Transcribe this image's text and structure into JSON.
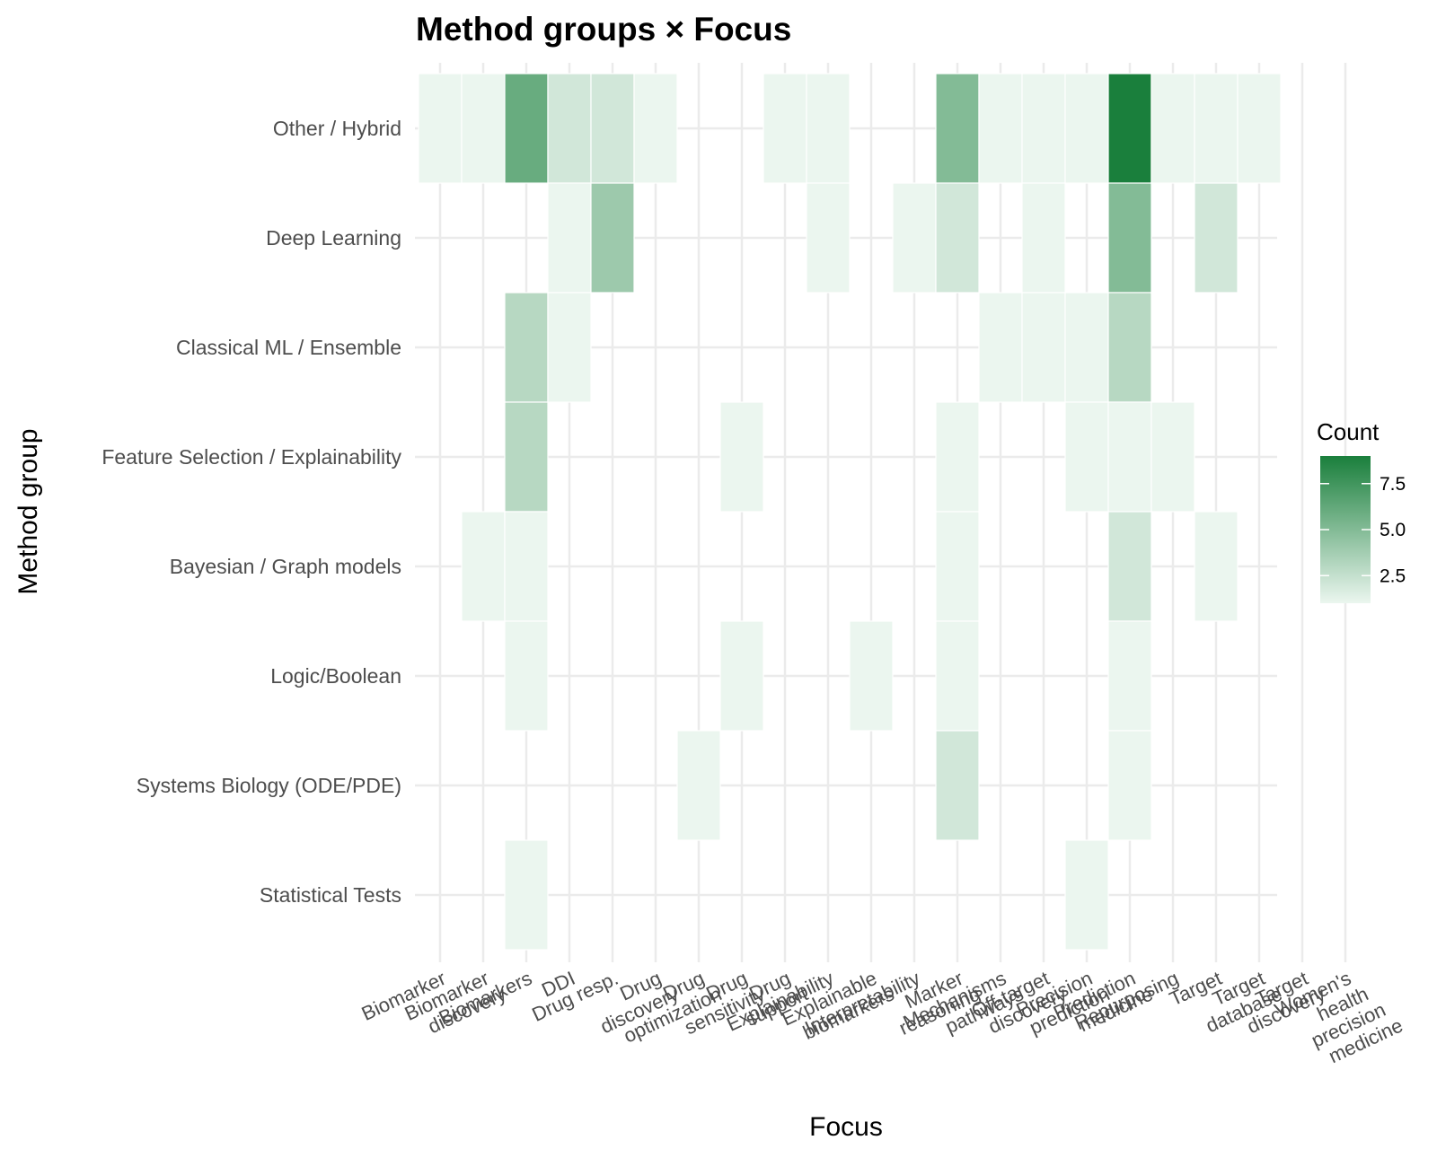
{
  "chart_data": {
    "type": "heatmap",
    "title": "Method groups × Focus",
    "xlabel": "Focus",
    "ylabel": "Method group",
    "x_categories": [
      "Biomarker",
      "Biomarker\ndiscovery",
      "Biomarkers",
      "DDI",
      "Drug resp.",
      "Drug\ndiscovery",
      "Drug\noptimization",
      "Drug\nsensitivity",
      "Drug\nsupport",
      "Explainability",
      "Explainable\nbiomarkers",
      "Interpretability",
      "Marker\nreasoning",
      "Mechanisms\npathways",
      "Off-target\ndiscovery",
      "Precision\nprediction",
      "Prediction\nmedicine",
      "Repurposing",
      "Target",
      "Target\ndatabase",
      "Target\ndiscovery",
      "Women's\nhealth\nprecision\nmedicine"
    ],
    "y_categories": [
      "Other / Hybrid",
      "Deep Learning",
      "Classical ML / Ensemble",
      "Feature Selection / Explainability",
      "Bayesian / Graph models",
      "Logic/Boolean",
      "Systems Biology (ODE/PDE)",
      "Statistical Tests"
    ],
    "cells": [
      {
        "y": "Other / Hybrid",
        "x": 0,
        "value": 1
      },
      {
        "y": "Other / Hybrid",
        "x": 1,
        "value": 1
      },
      {
        "y": "Other / Hybrid",
        "x": 2,
        "value": 6
      },
      {
        "y": "Other / Hybrid",
        "x": 3,
        "value": 2
      },
      {
        "y": "Other / Hybrid",
        "x": 4,
        "value": 2
      },
      {
        "y": "Other / Hybrid",
        "x": 5,
        "value": 1
      },
      {
        "y": "Other / Hybrid",
        "x": 8,
        "value": 1
      },
      {
        "y": "Other / Hybrid",
        "x": 9,
        "value": 1
      },
      {
        "y": "Other / Hybrid",
        "x": 12,
        "value": 5
      },
      {
        "y": "Other / Hybrid",
        "x": 13,
        "value": 1
      },
      {
        "y": "Other / Hybrid",
        "x": 14,
        "value": 1
      },
      {
        "y": "Other / Hybrid",
        "x": 15,
        "value": 1
      },
      {
        "y": "Other / Hybrid",
        "x": 16,
        "value": 9
      },
      {
        "y": "Other / Hybrid",
        "x": 17,
        "value": 1
      },
      {
        "y": "Other / Hybrid",
        "x": 18,
        "value": 1
      },
      {
        "y": "Other / Hybrid",
        "x": 19,
        "value": 1
      },
      {
        "y": "Deep Learning",
        "x": 3,
        "value": 1
      },
      {
        "y": "Deep Learning",
        "x": 4,
        "value": 4
      },
      {
        "y": "Deep Learning",
        "x": 9,
        "value": 1
      },
      {
        "y": "Deep Learning",
        "x": 11,
        "value": 1
      },
      {
        "y": "Deep Learning",
        "x": 12,
        "value": 2
      },
      {
        "y": "Deep Learning",
        "x": 14,
        "value": 1
      },
      {
        "y": "Deep Learning",
        "x": 16,
        "value": 5
      },
      {
        "y": "Deep Learning",
        "x": 18,
        "value": 2
      },
      {
        "y": "Classical ML / Ensemble",
        "x": 2,
        "value": 3
      },
      {
        "y": "Classical ML / Ensemble",
        "x": 3,
        "value": 1
      },
      {
        "y": "Classical ML / Ensemble",
        "x": 13,
        "value": 1
      },
      {
        "y": "Classical ML / Ensemble",
        "x": 14,
        "value": 1
      },
      {
        "y": "Classical ML / Ensemble",
        "x": 15,
        "value": 1
      },
      {
        "y": "Classical ML / Ensemble",
        "x": 16,
        "value": 3
      },
      {
        "y": "Feature Selection / Explainability",
        "x": 2,
        "value": 3
      },
      {
        "y": "Feature Selection / Explainability",
        "x": 7,
        "value": 1
      },
      {
        "y": "Feature Selection / Explainability",
        "x": 12,
        "value": 1
      },
      {
        "y": "Feature Selection / Explainability",
        "x": 15,
        "value": 1
      },
      {
        "y": "Feature Selection / Explainability",
        "x": 16,
        "value": 1
      },
      {
        "y": "Feature Selection / Explainability",
        "x": 17,
        "value": 1
      },
      {
        "y": "Bayesian / Graph models",
        "x": 1,
        "value": 1
      },
      {
        "y": "Bayesian / Graph models",
        "x": 2,
        "value": 1
      },
      {
        "y": "Bayesian / Graph models",
        "x": 12,
        "value": 1
      },
      {
        "y": "Bayesian / Graph models",
        "x": 16,
        "value": 2
      },
      {
        "y": "Bayesian / Graph models",
        "x": 18,
        "value": 1
      },
      {
        "y": "Logic/Boolean",
        "x": 2,
        "value": 1
      },
      {
        "y": "Logic/Boolean",
        "x": 7,
        "value": 1
      },
      {
        "y": "Logic/Boolean",
        "x": 10,
        "value": 1
      },
      {
        "y": "Logic/Boolean",
        "x": 12,
        "value": 1
      },
      {
        "y": "Logic/Boolean",
        "x": 16,
        "value": 1
      },
      {
        "y": "Systems Biology (ODE/PDE)",
        "x": 6,
        "value": 1
      },
      {
        "y": "Systems Biology (ODE/PDE)",
        "x": 12,
        "value": 2
      },
      {
        "y": "Systems Biology (ODE/PDE)",
        "x": 16,
        "value": 1
      },
      {
        "y": "Statistical Tests",
        "x": 2,
        "value": 1
      },
      {
        "y": "Statistical Tests",
        "x": 15,
        "value": 1
      }
    ],
    "legend": {
      "title": "Count",
      "placement": "right",
      "range": [
        1,
        9
      ],
      "ticks": [
        2.5,
        5.0,
        7.5
      ],
      "tick_labels": [
        "2.5",
        "5.0",
        "7.5"
      ],
      "colors": [
        "#ebf6ef",
        "#1a7f3c"
      ]
    },
    "grid": true
  }
}
